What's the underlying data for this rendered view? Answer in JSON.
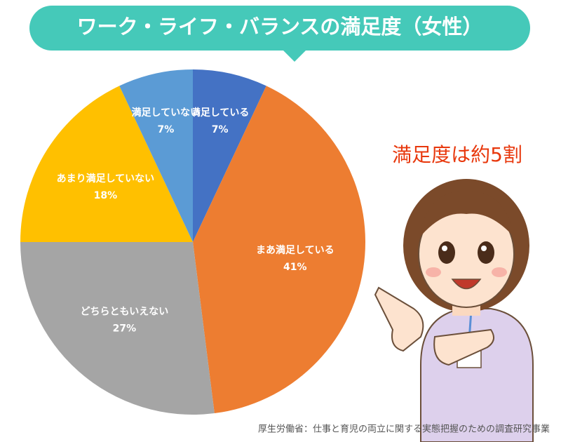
{
  "chart_data": {
    "type": "pie",
    "title": "ワーク・ライフ・バランスの満足度（女性）",
    "annotation": "満足度は約5割",
    "source": "厚生労働省：仕事と育児の両立に関する実態把握のための調査研究事業",
    "categories": [
      "満足している",
      "まあ満足している",
      "どちらともいえない",
      "あまり満足していない",
      "満足していない"
    ],
    "values": [
      7,
      41,
      27,
      18,
      7
    ],
    "value_labels": [
      "7%",
      "41%",
      "27%",
      "18%",
      "7%"
    ],
    "colors": [
      "#4472c4",
      "#ed7d31",
      "#a5a5a5",
      "#ffc000",
      "#5b9bd5"
    ]
  }
}
